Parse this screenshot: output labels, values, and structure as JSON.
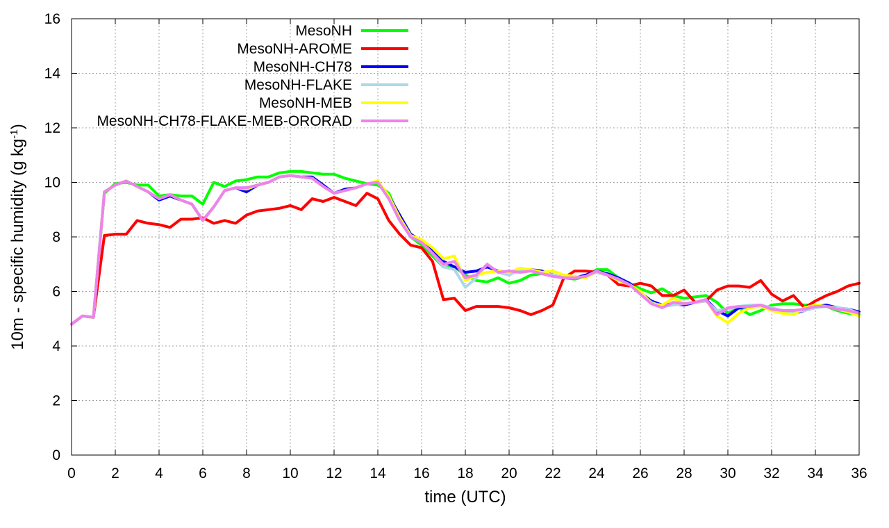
{
  "chart_data": {
    "type": "line",
    "xlabel": "time (UTC)",
    "ylabel_main": "10m - specific humidity (g kg",
    "ylabel_sup": "-1",
    "ylabel_end": ")",
    "xlim": [
      0,
      36
    ],
    "ylim": [
      0,
      16
    ],
    "xticks": [
      0,
      2,
      4,
      6,
      8,
      10,
      12,
      14,
      16,
      18,
      20,
      22,
      24,
      26,
      28,
      30,
      32,
      34,
      36
    ],
    "yticks": [
      0,
      2,
      4,
      6,
      8,
      10,
      12,
      14,
      16
    ],
    "grid": true,
    "legend_position": "top-left",
    "series": [
      {
        "name": "MesoNH",
        "color": "#00ff00",
        "x": [
          0,
          0.5,
          1,
          1.5,
          2,
          2.5,
          3,
          3.5,
          4,
          4.5,
          5,
          5.5,
          6,
          6.5,
          7,
          7.5,
          8,
          8.5,
          9,
          9.5,
          10,
          10.5,
          11,
          11.5,
          12,
          12.5,
          13,
          13.5,
          14,
          14.5,
          15,
          15.5,
          16,
          16.5,
          17,
          17.5,
          18,
          18.5,
          19,
          19.5,
          20,
          20.5,
          21,
          21.5,
          22,
          22.5,
          23,
          23.5,
          24,
          24.5,
          25,
          25.5,
          26,
          26.5,
          27,
          27.5,
          28,
          28.5,
          29,
          29.5,
          30,
          30.5,
          31,
          31.5,
          32,
          32.5,
          33,
          33.5,
          34,
          34.5,
          35,
          35.5,
          36
        ],
        "y": [
          4.8,
          5.1,
          5.05,
          9.6,
          9.95,
          10.0,
          9.9,
          9.9,
          9.5,
          9.55,
          9.5,
          9.5,
          9.2,
          10.0,
          9.85,
          10.05,
          10.1,
          10.2,
          10.2,
          10.35,
          10.4,
          10.4,
          10.35,
          10.3,
          10.3,
          10.15,
          10.05,
          9.95,
          9.9,
          9.6,
          8.7,
          8.0,
          7.7,
          7.3,
          6.9,
          6.9,
          6.6,
          6.4,
          6.35,
          6.5,
          6.3,
          6.4,
          6.6,
          6.65,
          6.6,
          6.5,
          6.45,
          6.55,
          6.8,
          6.8,
          6.5,
          6.3,
          6.1,
          5.95,
          6.1,
          5.85,
          5.75,
          5.8,
          5.85,
          5.6,
          5.2,
          5.4,
          5.15,
          5.3,
          5.5,
          5.55,
          5.55,
          5.5,
          5.5,
          5.45,
          5.3,
          5.2,
          5.15
        ]
      },
      {
        "name": "MesoNH-AROME",
        "color": "#ff0000",
        "x": [
          0,
          0.5,
          1,
          1.5,
          2,
          2.5,
          3,
          3.5,
          4,
          4.5,
          5,
          5.5,
          6,
          6.5,
          7,
          7.5,
          8,
          8.5,
          9,
          9.5,
          10,
          10.5,
          11,
          11.5,
          12,
          12.5,
          13,
          13.5,
          14,
          14.5,
          15,
          15.5,
          16,
          16.5,
          17,
          17.5,
          18,
          18.5,
          19,
          19.5,
          20,
          20.5,
          21,
          21.5,
          22,
          22.5,
          23,
          23.5,
          24,
          24.5,
          25,
          25.5,
          26,
          26.5,
          27,
          27.5,
          28,
          28.5,
          29,
          29.5,
          30,
          30.5,
          31,
          31.5,
          32,
          32.5,
          33,
          33.5,
          34,
          34.5,
          35,
          35.5,
          36
        ],
        "y": [
          4.8,
          5.1,
          5.05,
          8.05,
          8.1,
          8.1,
          8.6,
          8.5,
          8.45,
          8.35,
          8.65,
          8.65,
          8.7,
          8.5,
          8.6,
          8.5,
          8.8,
          8.95,
          9.0,
          9.05,
          9.15,
          9.0,
          9.4,
          9.3,
          9.45,
          9.3,
          9.15,
          9.6,
          9.4,
          8.6,
          8.1,
          7.7,
          7.6,
          7.1,
          5.7,
          5.75,
          5.3,
          5.45,
          5.45,
          5.45,
          5.4,
          5.3,
          5.15,
          5.3,
          5.5,
          6.5,
          6.75,
          6.75,
          6.7,
          6.6,
          6.25,
          6.2,
          6.3,
          6.2,
          5.85,
          5.85,
          6.05,
          5.6,
          5.65,
          6.05,
          6.2,
          6.2,
          6.15,
          6.4,
          5.9,
          5.65,
          5.85,
          5.4,
          5.65,
          5.85,
          6.0,
          6.2,
          6.3
        ]
      },
      {
        "name": "MesoNH-CH78",
        "color": "#0000ff",
        "x": [
          0,
          0.5,
          1,
          1.5,
          2,
          2.5,
          3,
          3.5,
          4,
          4.5,
          5,
          5.5,
          6,
          6.5,
          7,
          7.5,
          8,
          8.5,
          9,
          9.5,
          10,
          10.5,
          11,
          11.5,
          12,
          12.5,
          13,
          13.5,
          14,
          14.5,
          15,
          15.5,
          16,
          16.5,
          17,
          17.5,
          18,
          18.5,
          19,
          19.5,
          20,
          20.5,
          21,
          21.5,
          22,
          22.5,
          23,
          23.5,
          24,
          24.5,
          25,
          25.5,
          26,
          26.5,
          27,
          27.5,
          28,
          28.5,
          29,
          29.5,
          30,
          30.5,
          31,
          31.5,
          32,
          32.5,
          33,
          33.5,
          34,
          34.5,
          35,
          35.5,
          36
        ],
        "y": [
          4.8,
          5.1,
          5.05,
          9.65,
          9.9,
          10.05,
          9.85,
          9.65,
          9.35,
          9.5,
          9.35,
          9.2,
          8.6,
          9.1,
          9.7,
          9.8,
          9.65,
          9.9,
          10.0,
          10.2,
          10.25,
          10.2,
          10.2,
          9.9,
          9.6,
          9.75,
          9.8,
          9.95,
          10.0,
          9.5,
          8.8,
          8.1,
          7.85,
          7.5,
          7.1,
          6.9,
          6.7,
          6.75,
          6.9,
          6.75,
          6.7,
          6.75,
          6.8,
          6.75,
          6.6,
          6.5,
          6.5,
          6.6,
          6.75,
          6.65,
          6.5,
          6.3,
          5.95,
          5.65,
          5.5,
          5.55,
          5.5,
          5.6,
          5.7,
          5.3,
          5.1,
          5.4,
          5.45,
          5.45,
          5.35,
          5.25,
          5.2,
          5.3,
          5.45,
          5.5,
          5.4,
          5.35,
          5.25
        ]
      },
      {
        "name": "MesoNH-FLAKE",
        "color": "#add8e6",
        "x": [
          0,
          0.5,
          1,
          1.5,
          2,
          2.5,
          3,
          3.5,
          4,
          4.5,
          5,
          5.5,
          6,
          6.5,
          7,
          7.5,
          8,
          8.5,
          9,
          9.5,
          10,
          10.5,
          11,
          11.5,
          12,
          12.5,
          13,
          13.5,
          14,
          14.5,
          15,
          15.5,
          16,
          16.5,
          17,
          17.5,
          18,
          18.5,
          19,
          19.5,
          20,
          20.5,
          21,
          21.5,
          22,
          22.5,
          23,
          23.5,
          24,
          24.5,
          25,
          25.5,
          26,
          26.5,
          27,
          27.5,
          28,
          28.5,
          29,
          29.5,
          30,
          30.5,
          31,
          31.5,
          32,
          32.5,
          33,
          33.5,
          34,
          34.5,
          35,
          35.5,
          36
        ],
        "y": [
          4.8,
          5.1,
          5.05,
          9.65,
          9.9,
          10.05,
          9.85,
          9.65,
          9.4,
          9.55,
          9.35,
          9.2,
          8.6,
          9.1,
          9.7,
          9.8,
          9.8,
          9.9,
          10.0,
          10.2,
          10.25,
          10.2,
          10.15,
          9.85,
          9.6,
          9.7,
          9.8,
          9.95,
          10.0,
          9.4,
          8.6,
          8.0,
          7.8,
          7.4,
          6.9,
          6.8,
          6.15,
          6.5,
          7.0,
          6.7,
          6.6,
          6.8,
          6.75,
          6.7,
          6.6,
          6.5,
          6.5,
          6.55,
          6.7,
          6.6,
          6.45,
          6.25,
          5.95,
          5.6,
          5.45,
          5.5,
          5.55,
          5.6,
          5.65,
          5.3,
          5.35,
          5.45,
          5.5,
          5.5,
          5.4,
          5.3,
          5.25,
          5.3,
          5.4,
          5.45,
          5.4,
          5.35,
          5.2
        ]
      },
      {
        "name": "MesoNH-MEB",
        "color": "#ffff00",
        "x": [
          0,
          0.5,
          1,
          1.5,
          2,
          2.5,
          3,
          3.5,
          4,
          4.5,
          5,
          5.5,
          6,
          6.5,
          7,
          7.5,
          8,
          8.5,
          9,
          9.5,
          10,
          10.5,
          11,
          11.5,
          12,
          12.5,
          13,
          13.5,
          14,
          14.5,
          15,
          15.5,
          16,
          16.5,
          17,
          17.5,
          18,
          18.5,
          19,
          19.5,
          20,
          20.5,
          21,
          21.5,
          22,
          22.5,
          23,
          23.5,
          24,
          24.5,
          25,
          25.5,
          26,
          26.5,
          27,
          27.5,
          28,
          28.5,
          29,
          29.5,
          30,
          30.5,
          31,
          31.5,
          32,
          32.5,
          33,
          33.5,
          34,
          34.5,
          35,
          35.5,
          36
        ],
        "y": [
          4.8,
          5.1,
          5.05,
          9.65,
          9.9,
          10.05,
          9.85,
          9.65,
          9.4,
          9.55,
          9.35,
          9.2,
          8.6,
          9.1,
          9.7,
          9.8,
          9.75,
          9.9,
          10.0,
          10.2,
          10.25,
          10.2,
          10.15,
          9.85,
          9.6,
          9.7,
          9.8,
          9.95,
          10.05,
          9.5,
          8.7,
          8.05,
          7.9,
          7.6,
          7.2,
          7.3,
          6.4,
          6.6,
          6.7,
          6.75,
          6.7,
          6.85,
          6.8,
          6.7,
          6.75,
          6.6,
          6.55,
          6.5,
          6.75,
          6.6,
          6.4,
          6.25,
          6.0,
          5.55,
          5.5,
          5.75,
          5.55,
          5.6,
          5.7,
          5.1,
          4.85,
          5.2,
          5.4,
          5.45,
          5.3,
          5.2,
          5.15,
          5.4,
          5.5,
          5.45,
          5.35,
          5.25,
          5.1
        ]
      },
      {
        "name": "MesoNH-CH78-FLAKE-MEB-ORORAD",
        "color": "#ee82ee",
        "x": [
          0,
          0.5,
          1,
          1.5,
          2,
          2.5,
          3,
          3.5,
          4,
          4.5,
          5,
          5.5,
          6,
          6.5,
          7,
          7.5,
          8,
          8.5,
          9,
          9.5,
          10,
          10.5,
          11,
          11.5,
          12,
          12.5,
          13,
          13.5,
          14,
          14.5,
          15,
          15.5,
          16,
          16.5,
          17,
          17.5,
          18,
          18.5,
          19,
          19.5,
          20,
          20.5,
          21,
          21.5,
          22,
          22.5,
          23,
          23.5,
          24,
          24.5,
          25,
          25.5,
          26,
          26.5,
          27,
          27.5,
          28,
          28.5,
          29,
          29.5,
          30,
          30.5,
          31,
          31.5,
          32,
          32.5,
          33,
          33.5,
          34,
          34.5,
          35,
          35.5,
          36
        ],
        "y": [
          4.8,
          5.1,
          5.05,
          9.65,
          9.9,
          10.05,
          9.85,
          9.65,
          9.4,
          9.55,
          9.35,
          9.2,
          8.6,
          9.1,
          9.7,
          9.8,
          9.8,
          9.9,
          10.0,
          10.2,
          10.25,
          10.2,
          10.15,
          9.85,
          9.6,
          9.7,
          9.8,
          9.95,
          10.0,
          9.4,
          8.6,
          8.0,
          7.8,
          7.4,
          7.0,
          7.1,
          6.5,
          6.6,
          7.0,
          6.7,
          6.75,
          6.7,
          6.75,
          6.65,
          6.55,
          6.5,
          6.5,
          6.55,
          6.75,
          6.6,
          6.45,
          6.25,
          5.9,
          5.55,
          5.4,
          5.6,
          5.55,
          5.6,
          5.7,
          5.15,
          5.4,
          5.45,
          5.45,
          5.5,
          5.35,
          5.3,
          5.3,
          5.35,
          5.45,
          5.45,
          5.35,
          5.3,
          5.2
        ]
      }
    ]
  }
}
